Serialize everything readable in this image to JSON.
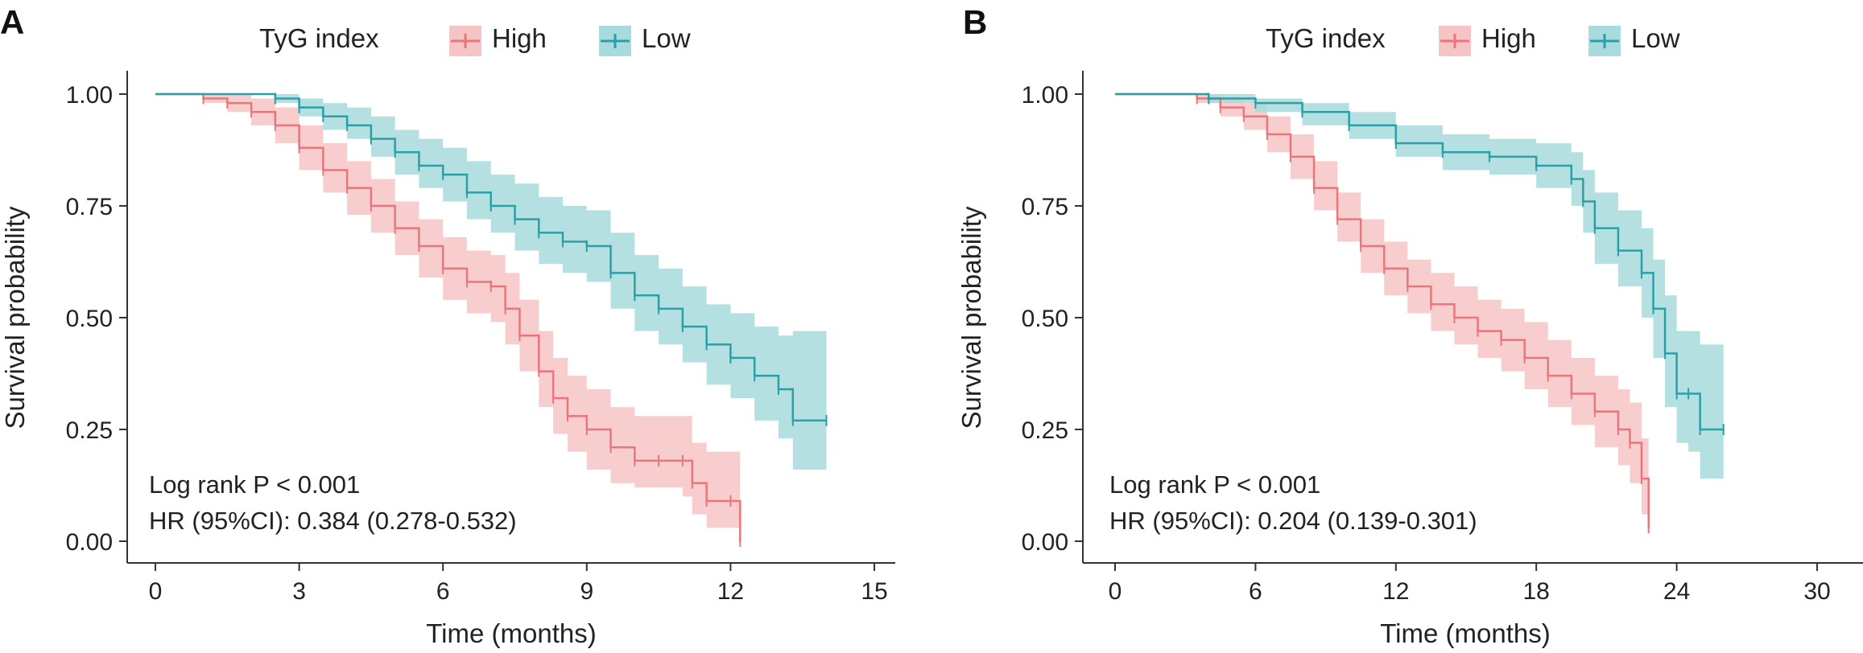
{
  "chart_data": [
    {
      "panel": "A",
      "type": "line",
      "title": "",
      "xlabel": "Time (months)",
      "ylabel": "Survival probability",
      "xlim": [
        0,
        15
      ],
      "ylim": [
        0,
        1
      ],
      "xticks": [
        0,
        3,
        6,
        9,
        12,
        15
      ],
      "yticks": [
        0,
        0.25,
        0.5,
        0.75,
        1.0
      ],
      "ytick_labels": [
        "0.00",
        "0.25",
        "0.50",
        "0.75",
        "1.00"
      ],
      "legend": {
        "title": "TyG index",
        "position": "top"
      },
      "annotations": [
        "Log rank P < 0.001",
        "HR (95%CI): 0.384 (0.278-0.532)"
      ],
      "series": [
        {
          "name": "High",
          "color": "#E8767B",
          "ci_color": "#F7C4C6",
          "x": [
            0,
            1.0,
            1.5,
            2.0,
            2.5,
            3.0,
            3.5,
            4.0,
            4.5,
            5.0,
            5.5,
            6.0,
            6.5,
            7.0,
            7.3,
            7.6,
            8.0,
            8.3,
            8.6,
            9.0,
            9.5,
            10.0,
            10.5,
            11.0,
            11.2,
            11.5,
            12.0,
            12.2
          ],
          "y": [
            1.0,
            0.99,
            0.98,
            0.96,
            0.93,
            0.88,
            0.83,
            0.79,
            0.75,
            0.7,
            0.66,
            0.61,
            0.58,
            0.57,
            0.52,
            0.46,
            0.38,
            0.32,
            0.28,
            0.25,
            0.21,
            0.18,
            0.18,
            0.18,
            0.13,
            0.09,
            0.09,
            0.0
          ],
          "lower": [
            1.0,
            0.98,
            0.96,
            0.93,
            0.89,
            0.83,
            0.78,
            0.73,
            0.69,
            0.64,
            0.59,
            0.54,
            0.51,
            0.49,
            0.44,
            0.38,
            0.3,
            0.24,
            0.2,
            0.16,
            0.13,
            0.12,
            0.12,
            0.1,
            0.06,
            0.03,
            0.03,
            0.0
          ],
          "upper": [
            1.0,
            1.0,
            1.0,
            0.99,
            0.97,
            0.93,
            0.89,
            0.85,
            0.81,
            0.76,
            0.72,
            0.68,
            0.65,
            0.64,
            0.6,
            0.54,
            0.47,
            0.41,
            0.37,
            0.34,
            0.3,
            0.28,
            0.28,
            0.28,
            0.22,
            0.2,
            0.2,
            0.0
          ]
        },
        {
          "name": "Low",
          "color": "#2A9FA8",
          "ci_color": "#A7DBDD",
          "x": [
            0,
            2.5,
            3.0,
            3.5,
            4.0,
            4.5,
            5.0,
            5.5,
            6.0,
            6.5,
            7.0,
            7.5,
            8.0,
            8.5,
            9.0,
            9.5,
            10.0,
            10.5,
            11.0,
            11.5,
            12.0,
            12.5,
            13.0,
            13.3,
            14.0
          ],
          "y": [
            1.0,
            0.99,
            0.97,
            0.95,
            0.93,
            0.9,
            0.87,
            0.84,
            0.82,
            0.78,
            0.75,
            0.72,
            0.69,
            0.67,
            0.66,
            0.6,
            0.55,
            0.52,
            0.48,
            0.44,
            0.41,
            0.37,
            0.34,
            0.27,
            0.27
          ],
          "lower": [
            1.0,
            0.98,
            0.95,
            0.92,
            0.9,
            0.86,
            0.82,
            0.79,
            0.76,
            0.72,
            0.69,
            0.65,
            0.62,
            0.6,
            0.58,
            0.52,
            0.47,
            0.44,
            0.4,
            0.35,
            0.32,
            0.27,
            0.23,
            0.16,
            0.16
          ],
          "upper": [
            1.0,
            1.0,
            0.99,
            0.98,
            0.97,
            0.95,
            0.92,
            0.9,
            0.88,
            0.85,
            0.82,
            0.8,
            0.77,
            0.75,
            0.74,
            0.69,
            0.64,
            0.61,
            0.57,
            0.53,
            0.51,
            0.48,
            0.46,
            0.47,
            0.47
          ]
        }
      ]
    },
    {
      "panel": "B",
      "type": "line",
      "title": "",
      "xlabel": "Time (months)",
      "ylabel": "Survival probability",
      "xlim": [
        0,
        30
      ],
      "ylim": [
        0,
        1
      ],
      "xticks": [
        0,
        6,
        12,
        18,
        24,
        30
      ],
      "yticks": [
        0,
        0.25,
        0.5,
        0.75,
        1.0
      ],
      "ytick_labels": [
        "0.00",
        "0.25",
        "0.50",
        "0.75",
        "1.00"
      ],
      "legend": {
        "title": "TyG index",
        "position": "top"
      },
      "annotations": [
        "Log rank P < 0.001",
        "HR (95%CI): 0.204 (0.139-0.301)"
      ],
      "series": [
        {
          "name": "High",
          "color": "#E8767B",
          "ci_color": "#F7C4C6",
          "x": [
            0,
            3.5,
            4.5,
            5.5,
            6.5,
            7.5,
            8.5,
            9.5,
            10.5,
            11.5,
            12.5,
            13.5,
            14.5,
            15.5,
            16.5,
            17.5,
            18.5,
            19.5,
            20.5,
            21.5,
            22.0,
            22.5,
            22.8
          ],
          "y": [
            1.0,
            0.99,
            0.97,
            0.95,
            0.91,
            0.86,
            0.79,
            0.72,
            0.66,
            0.61,
            0.57,
            0.53,
            0.5,
            0.47,
            0.45,
            0.41,
            0.37,
            0.33,
            0.29,
            0.25,
            0.22,
            0.14,
            0.03
          ],
          "lower": [
            1.0,
            0.98,
            0.95,
            0.92,
            0.87,
            0.81,
            0.74,
            0.67,
            0.6,
            0.55,
            0.51,
            0.47,
            0.44,
            0.41,
            0.38,
            0.34,
            0.3,
            0.26,
            0.21,
            0.17,
            0.13,
            0.06,
            0.0
          ],
          "upper": [
            1.0,
            1.0,
            0.99,
            0.98,
            0.95,
            0.91,
            0.85,
            0.78,
            0.72,
            0.67,
            0.63,
            0.6,
            0.57,
            0.54,
            0.52,
            0.49,
            0.45,
            0.41,
            0.37,
            0.34,
            0.31,
            0.23,
            0.08
          ]
        },
        {
          "name": "Low",
          "color": "#2A9FA8",
          "ci_color": "#A7DBDD",
          "x": [
            0,
            4.0,
            6.0,
            8.0,
            10.0,
            12.0,
            14.0,
            16.0,
            18.0,
            19.5,
            20.0,
            20.5,
            21.5,
            22.5,
            23.0,
            23.5,
            24.0,
            24.5,
            25.0,
            26.0
          ],
          "y": [
            1.0,
            0.99,
            0.98,
            0.96,
            0.93,
            0.89,
            0.87,
            0.86,
            0.84,
            0.81,
            0.76,
            0.7,
            0.65,
            0.6,
            0.52,
            0.42,
            0.33,
            0.33,
            0.25,
            0.25
          ],
          "lower": [
            1.0,
            0.98,
            0.96,
            0.93,
            0.9,
            0.86,
            0.83,
            0.82,
            0.79,
            0.75,
            0.69,
            0.62,
            0.57,
            0.5,
            0.41,
            0.3,
            0.22,
            0.2,
            0.14,
            0.14
          ],
          "upper": [
            1.0,
            1.0,
            0.99,
            0.98,
            0.96,
            0.93,
            0.91,
            0.9,
            0.89,
            0.87,
            0.83,
            0.78,
            0.74,
            0.7,
            0.63,
            0.55,
            0.47,
            0.47,
            0.44,
            0.44
          ]
        }
      ]
    }
  ]
}
